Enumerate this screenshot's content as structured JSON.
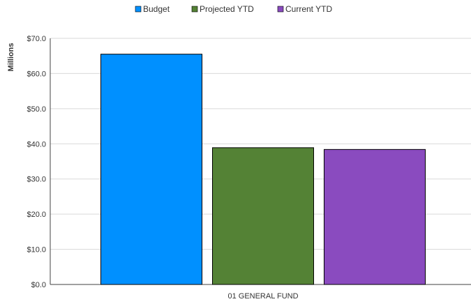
{
  "chart_data": {
    "type": "bar",
    "categories": [
      "01 GENERAL FUND"
    ],
    "series": [
      {
        "name": "Budget",
        "values": [
          65.5
        ],
        "color": "#0090ff"
      },
      {
        "name": "Projected YTD",
        "values": [
          38.9
        ],
        "color": "#548235"
      },
      {
        "name": "Current YTD",
        "values": [
          38.4
        ],
        "color": "#8a4bbf"
      }
    ],
    "ylabel": "Millions",
    "xlabel": "",
    "ylim": [
      0,
      70
    ],
    "yticks": [
      0,
      10,
      20,
      30,
      40,
      50,
      60,
      70
    ],
    "ytick_labels": [
      "$0.0",
      "$10.0",
      "$20.0",
      "$30.0",
      "$40.0",
      "$50.0",
      "$60.0",
      "$70.0"
    ],
    "grid": true,
    "legend_position": "top-center"
  }
}
